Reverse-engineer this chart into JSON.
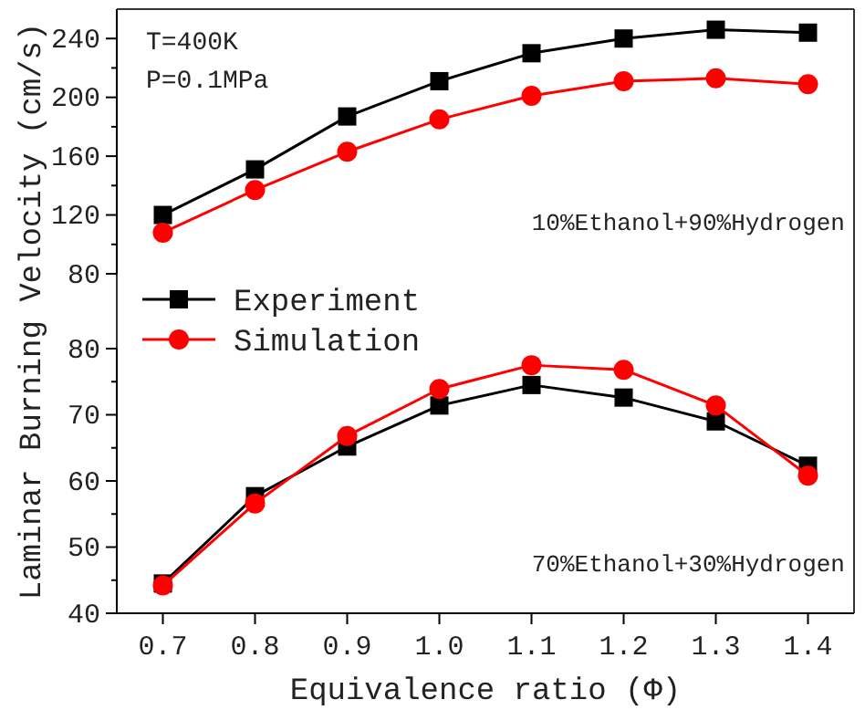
{
  "chart_data": [
    {
      "type": "line",
      "ylabel": "Laminar Burning Velocity (cm/s)",
      "annotations": [
        "T=400K",
        "P=0.1MPa",
        "10%Ethanol+90%Hydrogen"
      ],
      "x": [
        0.7,
        0.8,
        0.9,
        1.0,
        1.1,
        1.2,
        1.3,
        1.4
      ],
      "xlim": [
        0.65,
        1.45
      ],
      "ylim": [
        80,
        260
      ],
      "yticks": [
        80,
        {
          "value": 100,
          "label": null
        },
        120,
        {
          "value": 140,
          "label": null
        },
        160,
        {
          "value": 180,
          "label": null
        },
        200,
        {
          "value": 220,
          "label": null
        },
        240
      ],
      "tick_labels": "y",
      "legend": "bottom left",
      "grid": false,
      "series": [
        {
          "name": "Experiment",
          "color": "#000000",
          "marker": "square",
          "values": [
            120,
            151,
            187,
            211,
            230,
            240,
            246,
            244
          ]
        },
        {
          "name": "Simulation",
          "color": "#ff0000",
          "marker": "circle",
          "values": [
            108,
            137,
            163,
            185,
            201,
            211,
            213,
            209
          ]
        }
      ]
    },
    {
      "type": "line",
      "xlabel": "Equivalence ratio (Φ)",
      "annotations": [
        "70%Ethanol+30%Hydrogen"
      ],
      "x": [
        0.7,
        0.8,
        0.9,
        1.0,
        1.1,
        1.2,
        1.3,
        1.4
      ],
      "xlim": [
        0.65,
        1.45
      ],
      "ylim": [
        40,
        80
      ],
      "xticks": [
        0.7,
        0.8,
        0.9,
        {
          "value": 1.0,
          "label": "1.0"
        },
        1.1,
        1.2,
        1.3,
        1.4
      ],
      "yticks": [
        40,
        {
          "value": 45,
          "label": null
        },
        50,
        {
          "value": 55,
          "label": null
        },
        60,
        {
          "value": 65,
          "label": null
        },
        70,
        {
          "value": 75,
          "label": null
        },
        80
      ],
      "legend": false,
      "grid": false,
      "series": [
        {
          "color": "#000000",
          "marker": "square",
          "values": [
            44.5,
            57.7,
            65.2,
            71.4,
            74.5,
            72.6,
            69,
            62.3
          ]
        },
        {
          "color": "#ff0000",
          "marker": "circle",
          "values": [
            44.2,
            56.6,
            66.8,
            73.9,
            77.5,
            76.8,
            71.4,
            60.8
          ]
        }
      ]
    }
  ]
}
